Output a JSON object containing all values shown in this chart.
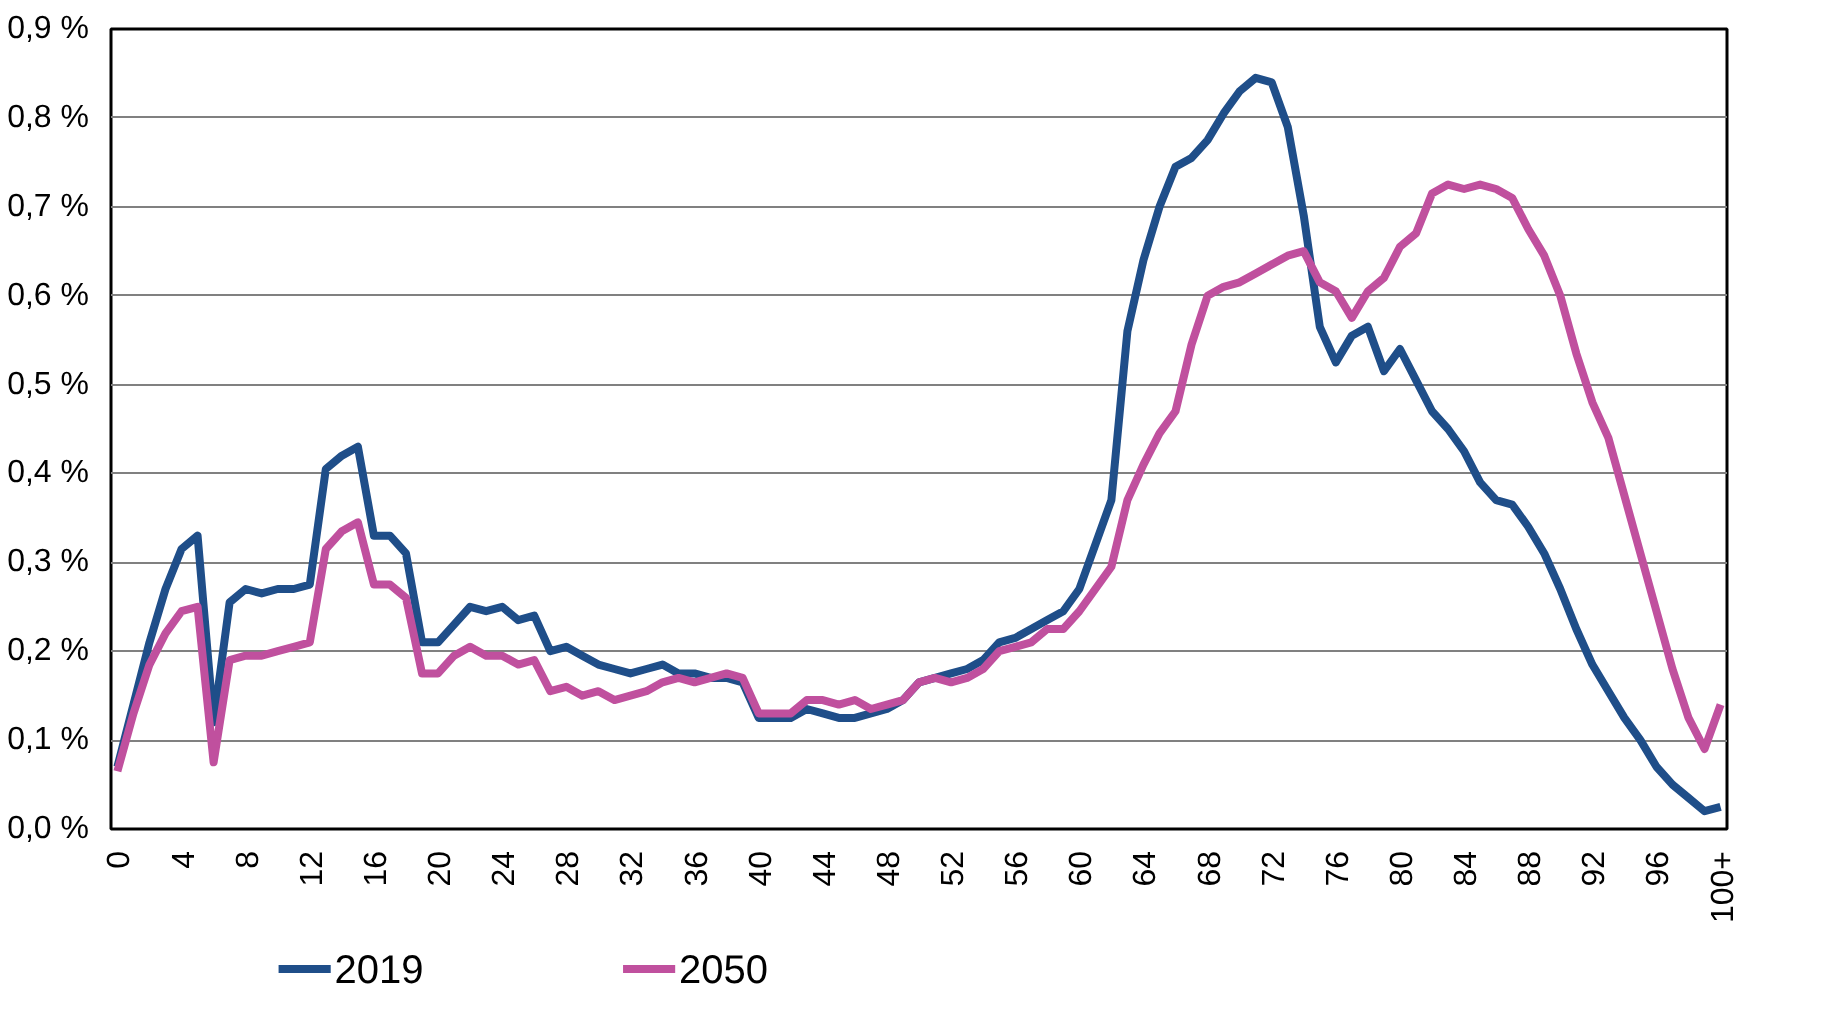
{
  "chart_data": {
    "type": "line",
    "categories": [
      "0",
      null,
      null,
      null,
      "4",
      null,
      null,
      null,
      "8",
      null,
      null,
      null,
      "12",
      null,
      null,
      null,
      "16",
      null,
      null,
      null,
      "20",
      null,
      null,
      null,
      "24",
      null,
      null,
      null,
      "28",
      null,
      null,
      null,
      "32",
      null,
      null,
      null,
      "36",
      null,
      null,
      null,
      "40",
      null,
      null,
      null,
      "44",
      null,
      null,
      null,
      "48",
      null,
      null,
      null,
      "52",
      null,
      null,
      null,
      "56",
      null,
      null,
      null,
      "60",
      null,
      null,
      null,
      "64",
      null,
      null,
      null,
      "68",
      null,
      null,
      null,
      "72",
      null,
      null,
      null,
      "76",
      null,
      null,
      null,
      "80",
      null,
      null,
      null,
      "84",
      null,
      null,
      null,
      "88",
      null,
      null,
      null,
      "92",
      null,
      null,
      null,
      "96",
      null,
      null,
      null,
      "100+"
    ],
    "series": [
      {
        "name": "2019",
        "color": "#1f4e89",
        "values": [
          0.07,
          0.14,
          0.21,
          0.27,
          0.315,
          0.33,
          0.12,
          0.255,
          0.27,
          0.265,
          0.27,
          0.27,
          0.275,
          0.405,
          0.42,
          0.43,
          0.33,
          0.33,
          0.31,
          0.21,
          0.21,
          0.23,
          0.25,
          0.245,
          0.25,
          0.235,
          0.24,
          0.2,
          0.205,
          0.195,
          0.185,
          0.18,
          0.175,
          0.18,
          0.185,
          0.175,
          0.175,
          0.17,
          0.17,
          0.165,
          0.125,
          0.125,
          0.125,
          0.135,
          0.13,
          0.125,
          0.125,
          0.13,
          0.135,
          0.145,
          0.165,
          0.17,
          0.175,
          0.18,
          0.19,
          0.21,
          0.215,
          0.225,
          0.235,
          0.245,
          0.27,
          0.32,
          0.37,
          0.56,
          0.64,
          0.7,
          0.745,
          0.755,
          0.775,
          0.805,
          0.83,
          0.845,
          0.84,
          0.79,
          0.69,
          0.565,
          0.525,
          0.555,
          0.565,
          0.515,
          0.54,
          0.505,
          0.47,
          0.45,
          0.425,
          0.39,
          0.37,
          0.365,
          0.34,
          0.31,
          0.27,
          0.225,
          0.185,
          0.155,
          0.125,
          0.1,
          0.07,
          0.05,
          0.035,
          0.02,
          0.025
        ]
      },
      {
        "name": "2050",
        "color": "#c0509e",
        "values": [
          0.065,
          0.13,
          0.185,
          0.22,
          0.245,
          0.25,
          0.075,
          0.19,
          0.195,
          0.195,
          0.2,
          0.205,
          0.21,
          0.315,
          0.335,
          0.345,
          0.275,
          0.275,
          0.26,
          0.175,
          0.175,
          0.195,
          0.205,
          0.195,
          0.195,
          0.185,
          0.19,
          0.155,
          0.16,
          0.15,
          0.155,
          0.145,
          0.15,
          0.155,
          0.165,
          0.17,
          0.165,
          0.17,
          0.175,
          0.17,
          0.13,
          0.13,
          0.13,
          0.145,
          0.145,
          0.14,
          0.145,
          0.135,
          0.14,
          0.145,
          0.165,
          0.17,
          0.165,
          0.17,
          0.18,
          0.2,
          0.205,
          0.21,
          0.225,
          0.225,
          0.245,
          0.27,
          0.295,
          0.37,
          0.41,
          0.445,
          0.47,
          0.545,
          0.6,
          0.61,
          0.615,
          0.625,
          0.635,
          0.645,
          0.65,
          0.615,
          0.605,
          0.575,
          0.605,
          0.62,
          0.655,
          0.67,
          0.715,
          0.725,
          0.72,
          0.725,
          0.72,
          0.71,
          0.675,
          0.645,
          0.6,
          0.535,
          0.48,
          0.44,
          0.375,
          0.31,
          0.245,
          0.18,
          0.125,
          0.09,
          0.14
        ]
      }
    ],
    "ylim": [
      0,
      0.9
    ],
    "yticks": [
      {
        "value": 0,
        "label": "0,0 %"
      },
      {
        "value": 0.1,
        "label": "0,1 %"
      },
      {
        "value": 0.2,
        "label": "0,2 %"
      },
      {
        "value": 0.3,
        "label": "0,3 %"
      },
      {
        "value": 0.4,
        "label": "0,4 %"
      },
      {
        "value": 0.5,
        "label": "0,5 %"
      },
      {
        "value": 0.6,
        "label": "0,6 %"
      },
      {
        "value": 0.7,
        "label": "0,7 %"
      },
      {
        "value": 0.8,
        "label": "0,8 %"
      },
      {
        "value": 0.9,
        "label": "0,9 %"
      }
    ],
    "grid": "y",
    "legend": "bottom",
    "marker": "none",
    "line_style": "solid"
  }
}
